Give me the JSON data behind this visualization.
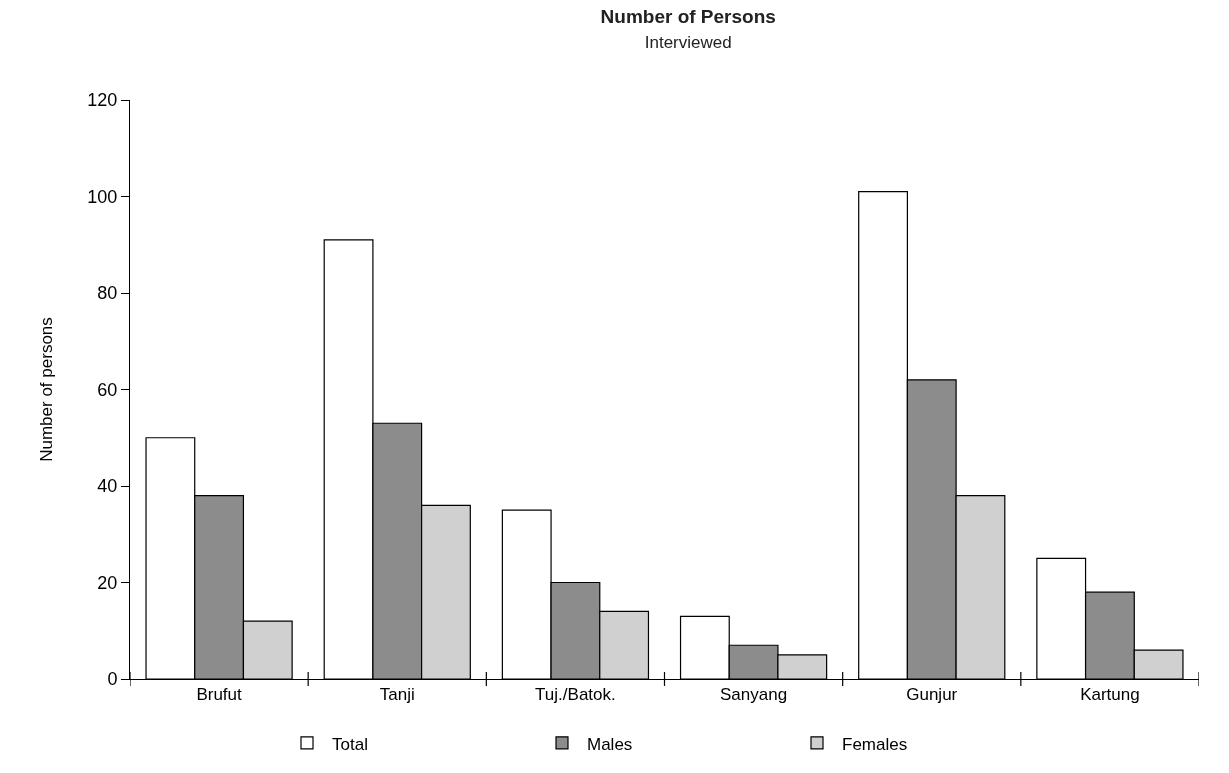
{
  "chart_data": {
    "type": "bar",
    "title": "Number of Persons",
    "subtitle": "Interviewed",
    "ylabel": "Number of persons",
    "categories": [
      "Brufut",
      "Tanji",
      "Tuj./Batok.",
      "Sanyang",
      "Gunjur",
      "Kartung"
    ],
    "series": [
      {
        "name": "Total",
        "color": "#ffffff",
        "values": [
          50,
          91,
          35,
          13,
          101,
          25
        ]
      },
      {
        "name": "Males",
        "color": "#8c8c8c",
        "values": [
          38,
          53,
          20,
          7,
          62,
          18
        ]
      },
      {
        "name": "Females",
        "color": "#d0d0d0",
        "values": [
          12,
          36,
          14,
          5,
          38,
          6
        ]
      }
    ],
    "ylim": [
      0,
      120
    ],
    "yticks": [
      0,
      20,
      40,
      60,
      80,
      100,
      120
    ],
    "grid": false,
    "legend": "bottom"
  }
}
